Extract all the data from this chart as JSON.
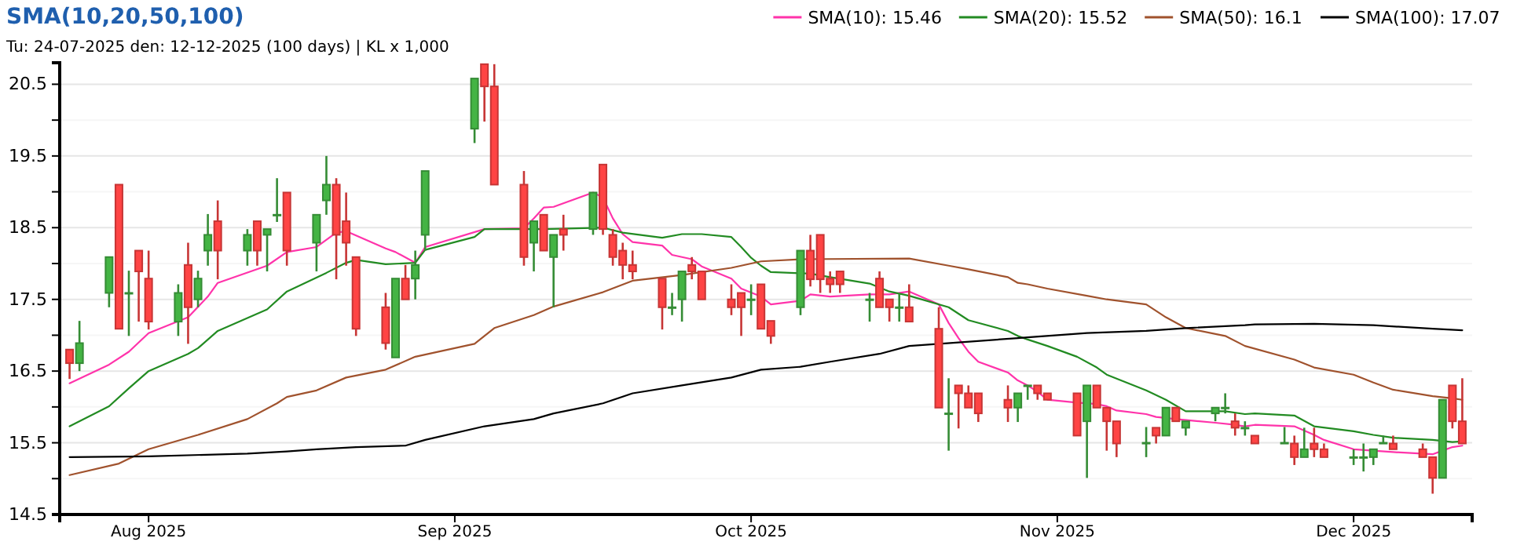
{
  "chart_data": {
    "type": "candlestick",
    "title": "SMA(10,20,50,100)",
    "subtitle": "Tu: 24-07-2025 den: 12-12-2025 (100 days) | KL x 1,000",
    "x": [
      "2025-07-24",
      "2025-07-25",
      "2025-07-28",
      "2025-07-29",
      "2025-07-30",
      "2025-07-31",
      "2025-08-01",
      "2025-08-04",
      "2025-08-05",
      "2025-08-06",
      "2025-08-07",
      "2025-08-08",
      "2025-08-11",
      "2025-08-12",
      "2025-08-13",
      "2025-08-14",
      "2025-08-15",
      "2025-08-18",
      "2025-08-19",
      "2025-08-20",
      "2025-08-21",
      "2025-08-22",
      "2025-08-25",
      "2025-08-26",
      "2025-08-27",
      "2025-08-28",
      "2025-08-29",
      "2025-09-03",
      "2025-09-04",
      "2025-09-05",
      "2025-09-08",
      "2025-09-09",
      "2025-09-10",
      "2025-09-11",
      "2025-09-12",
      "2025-09-15",
      "2025-09-16",
      "2025-09-17",
      "2025-09-18",
      "2025-09-19",
      "2025-09-22",
      "2025-09-23",
      "2025-09-24",
      "2025-09-25",
      "2025-09-26",
      "2025-09-29",
      "2025-09-30",
      "2025-10-01",
      "2025-10-02",
      "2025-10-03",
      "2025-10-06",
      "2025-10-07",
      "2025-10-08",
      "2025-10-09",
      "2025-10-10",
      "2025-10-13",
      "2025-10-14",
      "2025-10-15",
      "2025-10-16",
      "2025-10-17",
      "2025-10-20",
      "2025-10-21",
      "2025-10-22",
      "2025-10-23",
      "2025-10-24",
      "2025-10-27",
      "2025-10-28",
      "2025-10-29",
      "2025-10-30",
      "2025-10-31",
      "2025-11-03",
      "2025-11-04",
      "2025-11-05",
      "2025-11-06",
      "2025-11-07",
      "2025-11-10",
      "2025-11-11",
      "2025-11-12",
      "2025-11-13",
      "2025-11-14",
      "2025-11-17",
      "2025-11-18",
      "2025-11-19",
      "2025-11-20",
      "2025-11-21",
      "2025-11-24",
      "2025-11-25",
      "2025-11-26",
      "2025-11-27",
      "2025-11-28",
      "2025-12-01",
      "2025-12-02",
      "2025-12-03",
      "2025-12-04",
      "2025-12-05",
      "2025-12-08",
      "2025-12-09",
      "2025-12-10",
      "2025-12-11",
      "2025-12-12"
    ],
    "ohlc": [
      [
        16.8,
        16.8,
        16.39,
        16.61
      ],
      [
        16.61,
        17.2,
        16.5,
        16.89
      ],
      [
        17.59,
        18.09,
        17.39,
        18.09
      ],
      [
        19.1,
        19.1,
        17.09,
        17.09
      ],
      [
        17.59,
        17.9,
        16.99,
        17.59
      ],
      [
        18.18,
        18.18,
        17.19,
        17.89
      ],
      [
        17.79,
        18.18,
        17.08,
        17.19
      ],
      [
        17.19,
        17.71,
        16.99,
        17.59
      ],
      [
        17.98,
        18.29,
        16.88,
        17.39
      ],
      [
        17.5,
        17.9,
        17.39,
        17.79
      ],
      [
        18.18,
        18.69,
        17.97,
        18.4
      ],
      [
        18.59,
        18.88,
        17.78,
        18.18
      ],
      [
        18.18,
        18.48,
        17.97,
        18.4
      ],
      [
        18.59,
        18.59,
        17.97,
        18.18
      ],
      [
        18.4,
        18.48,
        17.89,
        18.48
      ],
      [
        18.68,
        19.19,
        18.58,
        18.68
      ],
      [
        18.99,
        18.99,
        17.97,
        18.18
      ],
      [
        18.29,
        18.68,
        17.89,
        18.68
      ],
      [
        18.88,
        19.5,
        18.68,
        19.1
      ],
      [
        19.1,
        19.19,
        17.78,
        18.4
      ],
      [
        18.59,
        18.99,
        17.97,
        18.29
      ],
      [
        18.09,
        18.09,
        16.99,
        17.09
      ],
      [
        17.39,
        17.59,
        16.8,
        16.89
      ],
      [
        16.69,
        17.79,
        16.69,
        17.79
      ],
      [
        17.79,
        17.98,
        17.5,
        17.5
      ],
      [
        17.79,
        18.18,
        17.5,
        17.98
      ],
      [
        18.4,
        19.29,
        18.18,
        19.29
      ],
      [
        19.88,
        20.58,
        19.68,
        20.58
      ],
      [
        20.78,
        20.78,
        19.98,
        20.47
      ],
      [
        20.47,
        20.78,
        19.1,
        19.1
      ],
      [
        19.1,
        19.29,
        17.97,
        18.09
      ],
      [
        18.29,
        18.59,
        17.89,
        18.59
      ],
      [
        18.68,
        18.68,
        18.18,
        18.18
      ],
      [
        18.09,
        18.4,
        17.39,
        18.4
      ],
      [
        18.48,
        18.68,
        18.18,
        18.4
      ],
      [
        18.48,
        18.99,
        18.4,
        18.99
      ],
      [
        19.38,
        19.38,
        18.4,
        18.48
      ],
      [
        18.4,
        18.48,
        17.97,
        18.09
      ],
      [
        18.18,
        18.29,
        17.78,
        17.98
      ],
      [
        17.98,
        18.18,
        17.78,
        17.89
      ],
      [
        17.79,
        17.79,
        17.08,
        17.39
      ],
      [
        17.39,
        17.59,
        17.28,
        17.39
      ],
      [
        17.5,
        17.89,
        17.19,
        17.89
      ],
      [
        17.98,
        18.09,
        17.78,
        17.89
      ],
      [
        17.89,
        17.89,
        17.5,
        17.5
      ],
      [
        17.5,
        17.71,
        17.28,
        17.39
      ],
      [
        17.59,
        17.59,
        16.99,
        17.39
      ],
      [
        17.5,
        17.71,
        17.28,
        17.5
      ],
      [
        17.71,
        17.71,
        17.09,
        17.09
      ],
      [
        17.2,
        17.2,
        16.88,
        16.99
      ],
      [
        17.39,
        18.18,
        17.28,
        18.18
      ],
      [
        18.18,
        18.4,
        17.68,
        17.78
      ],
      [
        18.4,
        18.4,
        17.59,
        17.78
      ],
      [
        17.79,
        17.89,
        17.59,
        17.71
      ],
      [
        17.89,
        17.89,
        17.59,
        17.71
      ],
      [
        17.5,
        17.59,
        17.19,
        17.5
      ],
      [
        17.79,
        17.89,
        17.39,
        17.39
      ],
      [
        17.5,
        17.5,
        17.19,
        17.39
      ],
      [
        17.39,
        17.59,
        17.19,
        17.39
      ],
      [
        17.39,
        17.71,
        17.19,
        17.19
      ],
      [
        17.09,
        17.39,
        15.99,
        15.99
      ],
      [
        15.91,
        16.4,
        15.39,
        15.91
      ],
      [
        16.3,
        16.3,
        15.7,
        16.19
      ],
      [
        16.19,
        16.3,
        15.99,
        15.99
      ],
      [
        16.19,
        16.19,
        15.79,
        15.91
      ],
      [
        16.1,
        16.3,
        15.79,
        15.99
      ],
      [
        15.99,
        16.19,
        15.79,
        16.19
      ],
      [
        16.3,
        16.3,
        16.1,
        16.3
      ],
      [
        16.3,
        16.3,
        16.1,
        16.19
      ],
      [
        16.19,
        16.19,
        16.1,
        16.1
      ],
      [
        16.19,
        16.19,
        15.6,
        15.6
      ],
      [
        15.8,
        16.3,
        15.01,
        16.3
      ],
      [
        16.3,
        16.3,
        15.99,
        15.99
      ],
      [
        15.99,
        15.99,
        15.39,
        15.8
      ],
      [
        15.8,
        15.8,
        15.3,
        15.49
      ],
      [
        15.5,
        15.72,
        15.3,
        15.5
      ],
      [
        15.71,
        15.71,
        15.49,
        15.6
      ],
      [
        15.6,
        15.99,
        15.6,
        15.99
      ],
      [
        15.99,
        15.99,
        15.8,
        15.8
      ],
      [
        15.71,
        15.8,
        15.6,
        15.8
      ],
      [
        15.91,
        15.99,
        15.8,
        15.99
      ],
      [
        15.99,
        16.19,
        15.91,
        15.99
      ],
      [
        15.8,
        15.91,
        15.6,
        15.71
      ],
      [
        15.71,
        15.8,
        15.6,
        15.71
      ],
      [
        15.6,
        15.6,
        15.49,
        15.49
      ],
      [
        15.5,
        15.72,
        15.5,
        15.5
      ],
      [
        15.49,
        15.6,
        15.19,
        15.3
      ],
      [
        15.3,
        15.71,
        15.3,
        15.41
      ],
      [
        15.49,
        15.71,
        15.3,
        15.41
      ],
      [
        15.41,
        15.49,
        15.3,
        15.3
      ],
      [
        15.3,
        15.41,
        15.19,
        15.3
      ],
      [
        15.3,
        15.49,
        15.1,
        15.3
      ],
      [
        15.3,
        15.41,
        15.19,
        15.41
      ],
      [
        15.5,
        15.6,
        15.5,
        15.5
      ],
      [
        15.49,
        15.6,
        15.41,
        15.41
      ],
      [
        15.41,
        15.49,
        15.3,
        15.3
      ],
      [
        15.3,
        15.3,
        14.79,
        15.01
      ],
      [
        15.01,
        16.1,
        15.01,
        16.1
      ],
      [
        16.3,
        16.3,
        15.7,
        15.8
      ],
      [
        15.8,
        16.4,
        15.49,
        15.49
      ]
    ],
    "colors": [
      "#ff4444",
      "#44b444",
      "#44b444",
      "#ff4444",
      "#44b444",
      "#ff4444",
      "#ff4444",
      "#44b444",
      "#ff4444",
      "#44b444",
      "#44b444",
      "#ff4444",
      "#44b444",
      "#ff4444",
      "#44b444",
      "#44b444",
      "#ff4444",
      "#44b444",
      "#44b444",
      "#ff4444",
      "#ff4444",
      "#ff4444",
      "#ff4444",
      "#44b444",
      "#ff4444",
      "#44b444",
      "#44b444",
      "#44b444",
      "#ff4444",
      "#ff4444",
      "#ff4444",
      "#44b444",
      "#ff4444",
      "#44b444",
      "#ff4444",
      "#44b444",
      "#ff4444",
      "#ff4444",
      "#ff4444",
      "#ff4444",
      "#ff4444",
      "#44b444",
      "#44b444",
      "#ff4444",
      "#ff4444",
      "#ff4444",
      "#ff4444",
      "#44b444",
      "#ff4444",
      "#ff4444",
      "#44b444",
      "#ff4444",
      "#ff4444",
      "#ff4444",
      "#ff4444",
      "#44b444",
      "#ff4444",
      "#ff4444",
      "#44b444",
      "#ff4444",
      "#ff4444",
      "#44b444",
      "#ff4444",
      "#ff4444",
      "#ff4444",
      "#ff4444",
      "#44b444",
      "#44b444",
      "#ff4444",
      "#ff4444",
      "#ff4444",
      "#44b444",
      "#ff4444",
      "#ff4444",
      "#ff4444",
      "#44b444",
      "#ff4444",
      "#44b444",
      "#ff4444",
      "#44b444",
      "#44b444",
      "#44b444",
      "#ff4444",
      "#44b444",
      "#ff4444",
      "#44b444",
      "#ff4444",
      "#44b444",
      "#ff4444",
      "#ff4444",
      "#44b444",
      "#44b444",
      "#44b444",
      "#44b444",
      "#ff4444",
      "#ff4444",
      "#ff4444",
      "#44b444",
      "#ff4444",
      "#ff4444"
    ],
    "series": [
      {
        "type": "line",
        "name": "SMA(10): 15.46",
        "color": "#ff33aa",
        "x": [
          "2025-07-24",
          "2025-07-28",
          "2025-07-30",
          "2025-08-01",
          "2025-08-05",
          "2025-08-07",
          "2025-08-08",
          "2025-08-13",
          "2025-08-15",
          "2025-08-18",
          "2025-08-20",
          "2025-08-21",
          "2025-08-25",
          "2025-08-26",
          "2025-08-28",
          "2025-08-29",
          "2025-09-04",
          "2025-09-08",
          "2025-09-09",
          "2025-09-10",
          "2025-09-11",
          "2025-09-15",
          "2025-09-16",
          "2025-09-17",
          "2025-09-18",
          "2025-09-19",
          "2025-09-22",
          "2025-09-23",
          "2025-09-25",
          "2025-09-26",
          "2025-09-29",
          "2025-09-30",
          "2025-10-02",
          "2025-10-03",
          "2025-10-06",
          "2025-10-07",
          "2025-10-09",
          "2025-10-13",
          "2025-10-15",
          "2025-10-17",
          "2025-10-20",
          "2025-10-21",
          "2025-10-22",
          "2025-10-23",
          "2025-10-24",
          "2025-10-27",
          "2025-10-28",
          "2025-10-29",
          "2025-10-30",
          "2025-10-31",
          "2025-11-03",
          "2025-11-05",
          "2025-11-06",
          "2025-11-07",
          "2025-11-10",
          "2025-11-11",
          "2025-11-13",
          "2025-11-17",
          "2025-11-19",
          "2025-11-20",
          "2025-11-21",
          "2025-11-25",
          "2025-11-27",
          "2025-11-28",
          "2025-12-01",
          "2025-12-03",
          "2025-12-05",
          "2025-12-09",
          "2025-12-10",
          "2025-12-11",
          "2025-12-12"
        ],
        "values": [
          16.33,
          16.59,
          16.77,
          17.03,
          17.25,
          17.54,
          17.73,
          17.97,
          18.16,
          18.23,
          18.43,
          18.45,
          18.21,
          18.16,
          18.01,
          18.23,
          18.48,
          18.49,
          18.63,
          18.78,
          18.79,
          18.99,
          18.92,
          18.63,
          18.41,
          18.3,
          18.25,
          18.12,
          18.06,
          17.96,
          17.79,
          17.65,
          17.54,
          17.43,
          17.48,
          17.57,
          17.54,
          17.57,
          17.57,
          17.61,
          17.43,
          17.17,
          16.96,
          16.77,
          16.63,
          16.48,
          16.37,
          16.3,
          16.21,
          16.1,
          16.06,
          16.04,
          16.01,
          15.95,
          15.9,
          15.86,
          15.83,
          15.78,
          15.75,
          15.73,
          15.75,
          15.73,
          15.61,
          15.54,
          15.41,
          15.39,
          15.37,
          15.34,
          15.39,
          15.44,
          15.46
        ]
      },
      {
        "type": "line",
        "name": "SMA(20): 15.52",
        "color": "#228b22",
        "x": [
          "2025-07-24",
          "2025-07-28",
          "2025-07-30",
          "2025-08-01",
          "2025-08-05",
          "2025-08-06",
          "2025-08-08",
          "2025-08-13",
          "2025-08-15",
          "2025-08-19",
          "2025-08-21",
          "2025-08-22",
          "2025-08-25",
          "2025-08-28",
          "2025-08-29",
          "2025-09-03",
          "2025-09-04",
          "2025-09-10",
          "2025-09-16",
          "2025-09-18",
          "2025-09-22",
          "2025-09-24",
          "2025-09-26",
          "2025-09-29",
          "2025-09-30",
          "2025-10-01",
          "2025-10-02",
          "2025-10-03",
          "2025-10-07",
          "2025-10-09",
          "2025-10-13",
          "2025-10-15",
          "2025-10-17",
          "2025-10-21",
          "2025-10-23",
          "2025-10-27",
          "2025-10-28",
          "2025-10-29",
          "2025-10-31",
          "2025-11-03",
          "2025-11-05",
          "2025-11-06",
          "2025-11-10",
          "2025-11-12",
          "2025-11-14",
          "2025-11-18",
          "2025-11-20",
          "2025-11-21",
          "2025-11-25",
          "2025-11-27",
          "2025-12-01",
          "2025-12-03",
          "2025-12-05",
          "2025-12-09",
          "2025-12-11",
          "2025-12-12"
        ],
        "values": [
          15.73,
          16.01,
          16.26,
          16.5,
          16.74,
          16.82,
          17.06,
          17.36,
          17.61,
          17.87,
          18.01,
          18.05,
          17.99,
          18.01,
          18.19,
          18.37,
          18.48,
          18.48,
          18.5,
          18.43,
          18.36,
          18.41,
          18.41,
          18.37,
          18.23,
          18.08,
          17.97,
          17.88,
          17.86,
          17.81,
          17.72,
          17.61,
          17.55,
          17.39,
          17.21,
          17.06,
          16.99,
          16.94,
          16.85,
          16.7,
          16.55,
          16.45,
          16.23,
          16.1,
          15.94,
          15.94,
          15.9,
          15.91,
          15.88,
          15.73,
          15.66,
          15.61,
          15.57,
          15.54,
          15.51,
          15.52
        ]
      },
      {
        "type": "line",
        "name": "SMA(50): 16.1",
        "color": "#a0522d",
        "x": [
          "2025-07-24",
          "2025-07-29",
          "2025-08-01",
          "2025-08-06",
          "2025-08-11",
          "2025-08-14",
          "2025-08-15",
          "2025-08-18",
          "2025-08-21",
          "2025-08-25",
          "2025-08-28",
          "2025-09-03",
          "2025-09-05",
          "2025-09-09",
          "2025-09-11",
          "2025-09-16",
          "2025-09-19",
          "2025-09-24",
          "2025-09-29",
          "2025-10-02",
          "2025-10-06",
          "2025-10-17",
          "2025-10-21",
          "2025-10-23",
          "2025-10-27",
          "2025-10-28",
          "2025-10-29",
          "2025-10-31",
          "2025-11-04",
          "2025-11-06",
          "2025-11-10",
          "2025-11-12",
          "2025-11-14",
          "2025-11-18",
          "2025-11-20",
          "2025-11-25",
          "2025-11-27",
          "2025-12-01",
          "2025-12-03",
          "2025-12-05",
          "2025-12-09",
          "2025-12-11",
          "2025-12-12"
        ],
        "values": [
          15.05,
          15.21,
          15.41,
          15.61,
          15.83,
          16.05,
          16.14,
          16.23,
          16.41,
          16.52,
          16.7,
          16.88,
          17.1,
          17.28,
          17.4,
          17.6,
          17.76,
          17.84,
          17.94,
          18.03,
          18.06,
          18.07,
          17.97,
          17.92,
          17.81,
          17.73,
          17.71,
          17.65,
          17.55,
          17.5,
          17.43,
          17.25,
          17.1,
          16.99,
          16.85,
          16.66,
          16.55,
          16.45,
          16.34,
          16.24,
          16.15,
          16.12,
          16.1
        ]
      },
      {
        "type": "line",
        "name": "SMA(100): 17.07",
        "color": "#000000",
        "x": [
          "2025-07-24",
          "2025-08-01",
          "2025-08-11",
          "2025-08-15",
          "2025-08-18",
          "2025-08-22",
          "2025-08-27",
          "2025-08-29",
          "2025-09-04",
          "2025-09-09",
          "2025-09-11",
          "2025-09-16",
          "2025-09-19",
          "2025-09-24",
          "2025-09-29",
          "2025-10-02",
          "2025-10-06",
          "2025-10-09",
          "2025-10-14",
          "2025-10-17",
          "2025-10-22",
          "2025-10-28",
          "2025-10-29",
          "2025-11-04",
          "2025-11-10",
          "2025-11-14",
          "2025-11-20",
          "2025-11-21",
          "2025-11-27",
          "2025-12-03",
          "2025-12-09",
          "2025-12-12"
        ],
        "values": [
          15.3,
          15.31,
          15.35,
          15.38,
          15.41,
          15.44,
          15.46,
          15.54,
          15.73,
          15.83,
          15.91,
          16.05,
          16.19,
          16.3,
          16.41,
          16.52,
          16.56,
          16.63,
          16.74,
          16.85,
          16.9,
          16.96,
          16.97,
          17.03,
          17.06,
          17.1,
          17.14,
          17.15,
          17.16,
          17.14,
          17.09,
          17.07
        ]
      }
    ],
    "xlim": [
      "2025-07-23",
      "2025-12-13"
    ],
    "xticks": [
      {
        "value": "2025-08-01",
        "label": "Aug 2025"
      },
      {
        "value": "2025-09-01",
        "label": "Sep 2025"
      },
      {
        "value": "2025-10-01",
        "label": "Oct 2025"
      },
      {
        "value": "2025-11-01",
        "label": "Nov 2025"
      },
      {
        "value": "2025-12-01",
        "label": "Dec 2025"
      }
    ],
    "ylim": [
      14.5,
      20.8
    ],
    "yticks": [
      14.5,
      {
        "value": 15,
        "label": null
      },
      15.5,
      {
        "value": 16,
        "label": null
      },
      16.5,
      {
        "value": 17,
        "label": null
      },
      17.5,
      {
        "value": 18,
        "label": null
      },
      18.5,
      {
        "value": 19,
        "label": null
      },
      19.5,
      {
        "value": 20,
        "label": null
      },
      20.5
    ],
    "grid": "y",
    "legend": "top right"
  }
}
